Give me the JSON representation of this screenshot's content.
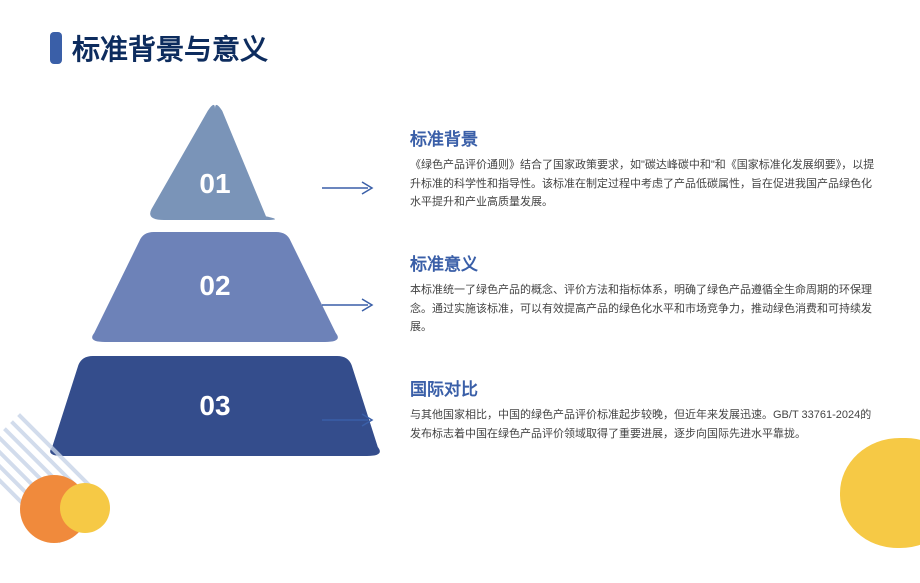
{
  "title": "标准背景与意义",
  "title_bar_color": "#3a5fa8",
  "title_text_color": "#0d2c5e",
  "pyramid": {
    "tiers": [
      {
        "num": "01",
        "color": "#7a94b8",
        "top_w": 2,
        "bot_w": 138,
        "h": 120,
        "radius": 18
      },
      {
        "num": "02",
        "color": "#6d82b8",
        "top_w": 144,
        "bot_w": 256,
        "h": 110,
        "radius": 18
      },
      {
        "num": "03",
        "color": "#344d8c",
        "top_w": 266,
        "bot_w": 340,
        "h": 100,
        "radius": 18
      }
    ],
    "arrow_color": "#3a5fa8"
  },
  "sections": [
    {
      "title": "标准背景",
      "title_color": "#3a5fa8",
      "body_color": "#444444",
      "body": "《绿色产品评价通则》结合了国家政策要求，如\"碳达峰碳中和\"和《国家标准化发展纲要》，以提升标准的科学性和指导性。该标准在制定过程中考虑了产品低碳属性，旨在促进我国产品绿色化水平提升和产业高质量发展。"
    },
    {
      "title": "标准意义",
      "title_color": "#3a5fa8",
      "body_color": "#444444",
      "body": "本标准统一了绿色产品的概念、评价方法和指标体系，明确了绿色产品遵循全生命周期的环保理念。通过实施该标准，可以有效提高产品的绿色化水平和市场竞争力，推动绿色消费和可持续发展。"
    },
    {
      "title": "国际对比",
      "title_color": "#3a5fa8",
      "body_color": "#444444",
      "body": "与其他国家相比，中国的绿色产品评价标准起步较晚，但近年来发展迅速。GB/T 33761-2024的发布标志着中国在绿色产品评价领域取得了重要进展，逐步向国际先进水平靠拢。"
    }
  ],
  "decorations": {
    "yellow_blob": "#f6c945",
    "orange_circle": "#f08a3c",
    "yellow_circle": "#f6c945",
    "diag_color": "#c8d4e8"
  }
}
